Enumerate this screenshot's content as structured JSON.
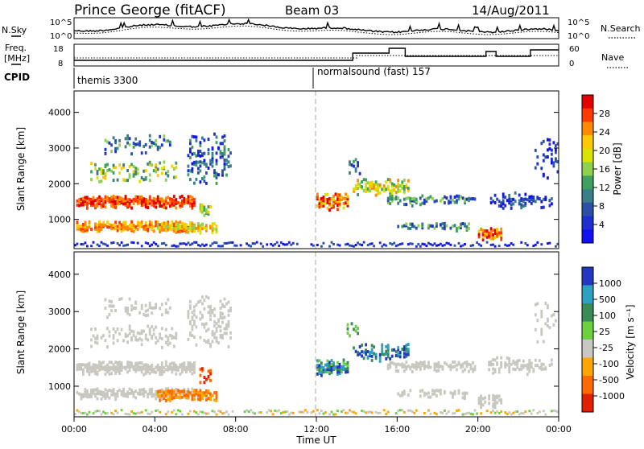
{
  "header": {
    "station": "Prince George (fitACF)",
    "beam": "Beam 03",
    "date": "14/Aug/2011"
  },
  "strip_panels": {
    "noise": {
      "left_label": "N.Sky",
      "right_label": "N.Search",
      "ticks_left": [
        "10^5",
        "10^0"
      ],
      "ticks_right": [
        "10^5",
        "10^0"
      ]
    },
    "freq": {
      "left_label_1": "Freq.",
      "left_label_2": "[MHz]",
      "right_label": "Nave",
      "ticks_left": [
        "18",
        "8"
      ],
      "ticks_right": [
        "60",
        "0"
      ]
    },
    "cpid": {
      "label": "CPID",
      "modes": [
        "themis 3300",
        "normalsound (fast) 157"
      ]
    }
  },
  "colorbars": {
    "power": {
      "title": "Power [dB]",
      "ticks": [
        "28",
        "24",
        "20",
        "16",
        "12",
        "8",
        "4"
      ],
      "colors": [
        "#e30000",
        "#ff3a00",
        "#ff8a00",
        "#ffc800",
        "#d8e400",
        "#8ed050",
        "#3fa060",
        "#3a7f88",
        "#2c4fa8",
        "#1f2fcf",
        "#1010f0"
      ]
    },
    "velocity": {
      "title": "Velocity [m s⁻¹]",
      "ticks": [
        "1000",
        "500",
        "100",
        "25",
        "-25",
        "-100",
        "-500",
        "-1000"
      ],
      "colors": [
        "#2238c0",
        "#2ea0c0",
        "#3a8a5a",
        "#6cd040",
        "#c8c8c0",
        "#ffa500",
        "#ff6a00",
        "#e02000"
      ]
    }
  },
  "chart_data": {
    "type": "heatmap",
    "x_axis": {
      "label": "Time UT",
      "ticks": [
        "00:00",
        "04:00",
        "08:00",
        "12:00",
        "16:00",
        "20:00",
        "00:00"
      ]
    },
    "panels": [
      {
        "name": "Power",
        "ylabel": "Slant Range [km]",
        "yticks": [
          "4000",
          "3000",
          "2000",
          "1000"
        ],
        "ylim": [
          180,
          4600
        ]
      },
      {
        "name": "Velocity",
        "ylabel": "Slant Range [km]",
        "yticks": [
          "4000",
          "3000",
          "2000",
          "1000"
        ],
        "ylim": [
          180,
          4600
        ]
      }
    ]
  }
}
